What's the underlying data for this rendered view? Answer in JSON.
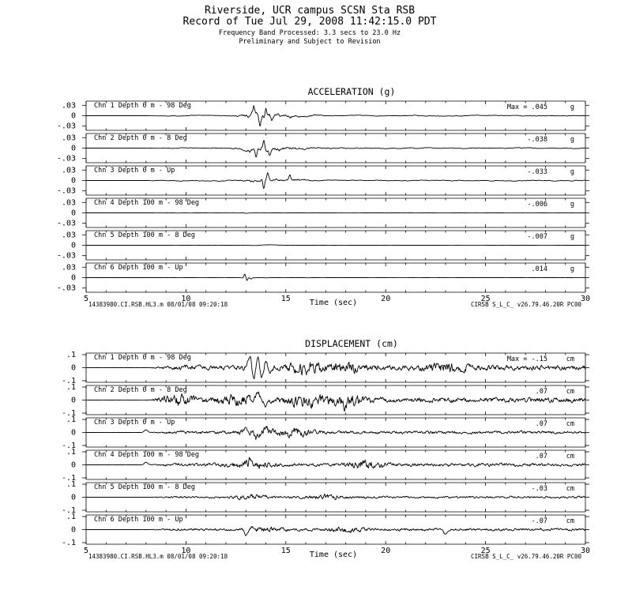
{
  "header": {
    "line1": "Riverside, UCR campus    SCSN Sta RSB",
    "line2": "Record of Tue Jul 29, 2008 11:42:15.0 PDT",
    "line3": "Frequency Band Processed: 3.3 secs to 23.0 Hz",
    "line4": "Preliminary and Subject to Revision"
  },
  "chart_data": [
    {
      "type": "line",
      "title": "ACCELERATION (g)",
      "xlabel": "Time (sec)",
      "xlim": [
        5,
        30
      ],
      "x_ticks": [
        "5",
        "10",
        "15",
        "20",
        "25",
        "30"
      ],
      "ylim": [
        -0.03,
        0.03
      ],
      "y_ticks": [
        ".03",
        "0",
        "-.03"
      ],
      "unit": "g",
      "max_prefix": "Max =",
      "footer_left": "14383980.CI.RSB.HL3.m 08/01/08 09:20:18",
      "footer_right": "CIRSB  S_L_C_  v26.79.46.20R PC00",
      "channels": [
        {
          "label": "Chn 1  Depth   0 m - 98 Deg",
          "max": ".045",
          "onset": 7.9,
          "pre": 0.0025,
          "coda": 0.0035,
          "peaks": [
            [
              13.6,
              0.024
            ],
            [
              14.9,
              0.012
            ],
            [
              16.2,
              0.006
            ]
          ],
          "sharp": [
            [
              13.4,
              0.026
            ],
            [
              13.7,
              -0.025
            ],
            [
              14.0,
              0.022
            ],
            [
              14.3,
              -0.018
            ]
          ],
          "bp": 0.09
        },
        {
          "label": "Chn 2  Depth   0 m - 8 Deg",
          "max": "-.038",
          "onset": 7.9,
          "pre": 0.004,
          "coda": 0.004,
          "peaks": [
            [
              13.6,
              0.022
            ],
            [
              15.0,
              0.012
            ],
            [
              16.5,
              0.005
            ]
          ],
          "sharp": [
            [
              13.5,
              -0.02
            ],
            [
              13.9,
              0.024
            ],
            [
              14.2,
              -0.016
            ]
          ],
          "bp": 0.09
        },
        {
          "label": "Chn 3  Depth   0 m - Up",
          "max": "-.033",
          "onset": 7.9,
          "pre": 0.004,
          "coda": 0.004,
          "peaks": [
            [
              13.6,
              0.014
            ],
            [
              15.3,
              0.009
            ]
          ],
          "sharp": [
            [
              13.9,
              -0.026
            ],
            [
              14.1,
              0.018
            ],
            [
              15.2,
              0.015
            ]
          ],
          "bp": 0.09
        },
        {
          "label": "Chn 4  Depth 100 m - 98 Deg",
          "max": "-.006",
          "onset": 7.9,
          "pre": 0.0012,
          "coda": 0.0008,
          "peaks": [
            [
              13.6,
              0.002
            ]
          ],
          "sharp": [],
          "bp": 0.09
        },
        {
          "label": "Chn 5  Depth 100 m - 8 Deg",
          "max": "-.007",
          "onset": 7.9,
          "pre": 0.0008,
          "coda": 0.0006,
          "peaks": [
            [
              13.8,
              0.0022
            ]
          ],
          "sharp": [],
          "bp": 0.09
        },
        {
          "label": "Chn 6  Depth 100 m - Up",
          "max": ".014",
          "onset": 7.9,
          "pre": 0.0008,
          "coda": 0.0007,
          "peaks": [
            [
              13.3,
              0.003
            ]
          ],
          "sharp": [
            [
              12.95,
              0.011
            ],
            [
              13.05,
              -0.008
            ],
            [
              13.25,
              -0.005
            ]
          ],
          "bp": 0.09
        }
      ]
    },
    {
      "type": "line",
      "title": "DISPLACEMENT (cm)",
      "xlabel": "Time (sec)",
      "xlim": [
        5,
        30
      ],
      "x_ticks": [
        "5",
        "10",
        "15",
        "20",
        "25",
        "30"
      ],
      "ylim": [
        -0.1,
        0.1
      ],
      "y_ticks": [
        ".1",
        "0",
        "-.1"
      ],
      "unit": "cm",
      "max_prefix": "Max =",
      "footer_left": "14383980.CI.RSB.HL3.m 08/01/08 09:20:18",
      "footer_right": "CIRSB  S_L_C_  v26.79.46.20R PC00",
      "channels": [
        {
          "label": "Chn 1  Depth   0 m - 98 Deg",
          "max": "-.15",
          "onset": 8.0,
          "pre": 0.012,
          "coda": 0.014,
          "peaks": [
            [
              16.0,
              0.025
            ],
            [
              18.0,
              0.02
            ],
            [
              23.0,
              0.02
            ]
          ],
          "sharp": [
            [
              13.2,
              0.09
            ],
            [
              13.4,
              -0.1
            ],
            [
              13.6,
              0.085
            ],
            [
              13.8,
              -0.09
            ],
            [
              14.0,
              0.07
            ],
            [
              14.2,
              -0.05
            ]
          ],
          "bp": 0.45
        },
        {
          "label": "Chn 2  Depth   0 m - 8 Deg",
          "max": ".07",
          "onset": 8.0,
          "pre": 0.014,
          "coda": 0.014,
          "peaks": [
            [
              9.5,
              0.02
            ],
            [
              12.5,
              0.02
            ],
            [
              16.0,
              0.025
            ],
            [
              18.0,
              0.025
            ]
          ],
          "sharp": [
            [
              13.6,
              0.06
            ],
            [
              14.0,
              -0.05
            ],
            [
              18.0,
              -0.04
            ]
          ],
          "bp": 0.45
        },
        {
          "label": "Chn 3  Depth   0 m - Up",
          "max": ".07",
          "onset": 8.0,
          "pre": 0.008,
          "coda": 0.008,
          "peaks": [
            [
              13.6,
              0.015
            ],
            [
              15.5,
              0.02
            ]
          ],
          "sharp": [
            [
              8.0,
              0.02
            ],
            [
              13.0,
              0.045
            ],
            [
              13.5,
              -0.04
            ],
            [
              14.0,
              0.03
            ]
          ],
          "bp": 0.45
        },
        {
          "label": "Chn 4  Depth 100 m - 98 Deg",
          "max": ".07",
          "onset": 8.0,
          "pre": 0.008,
          "coda": 0.009,
          "peaks": [
            [
              13.2,
              0.02
            ],
            [
              19.0,
              0.02
            ]
          ],
          "sharp": [
            [
              8.0,
              0.02
            ],
            [
              13.2,
              0.04
            ],
            [
              13.5,
              -0.02
            ]
          ],
          "bp": 0.45
        },
        {
          "label": "Chn 5  Depth 100 m - 8 Deg",
          "max": "-.03",
          "onset": 8.0,
          "pre": 0.005,
          "coda": 0.006,
          "peaks": [
            [
              13.2,
              0.01
            ],
            [
              17.0,
              0.01
            ]
          ],
          "sharp": [],
          "bp": 0.45
        },
        {
          "label": "Chn 6  Depth 100 m - Up",
          "max": "-.07",
          "onset": 8.0,
          "pre": 0.006,
          "coda": 0.007,
          "peaks": [
            [
              14.0,
              0.01
            ],
            [
              18.0,
              0.01
            ]
          ],
          "sharp": [
            [
              12.9,
              0.015
            ],
            [
              13.0,
              -0.055
            ],
            [
              13.3,
              0.025
            ],
            [
              23.0,
              -0.035
            ]
          ],
          "bp": 0.45
        }
      ]
    }
  ]
}
